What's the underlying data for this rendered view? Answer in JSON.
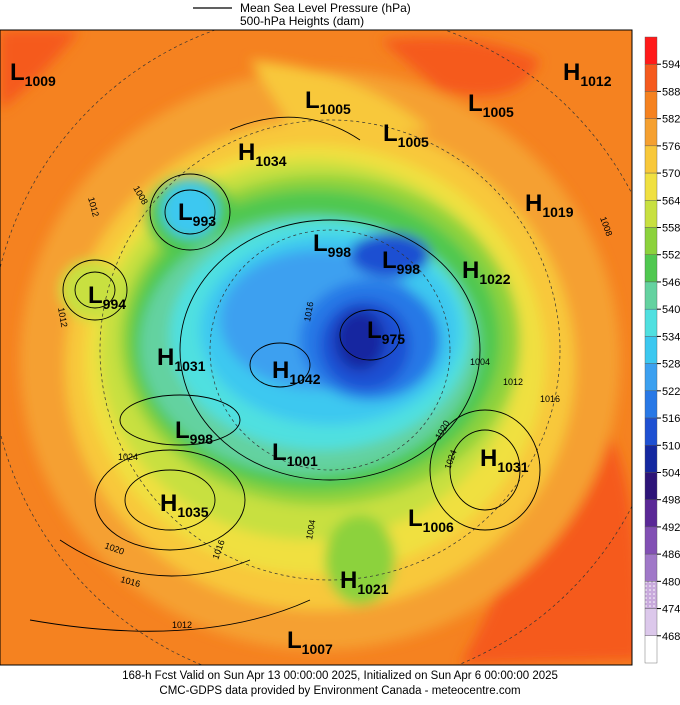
{
  "legend": {
    "line_1": "Mean Sea Level Pressure (hPa)",
    "line_2": "500-hPa Heights (dam)"
  },
  "colorbar": {
    "levels": [
      594,
      588,
      582,
      576,
      570,
      564,
      558,
      552,
      546,
      540,
      534,
      528,
      522,
      516,
      510,
      504,
      498,
      492,
      486,
      480,
      474,
      468
    ],
    "colors": [
      "#ff1a1a",
      "#f55a1e",
      "#f58220",
      "#f5a030",
      "#f8c83a",
      "#f0e040",
      "#c8e040",
      "#8cd23c",
      "#50c850",
      "#64d2a0",
      "#50e0e0",
      "#3cc8f0",
      "#3ca0f0",
      "#2878e6",
      "#1e50d2",
      "#1428a0",
      "#2d1478",
      "#5a2896",
      "#8250b4",
      "#a078c8",
      "#c8aadc",
      "#dcc8eb",
      "#ffffff"
    ]
  },
  "pressure_centers": [
    {
      "kind": "L",
      "value": 1009
    },
    {
      "kind": "L",
      "value": 1005
    },
    {
      "kind": "H",
      "value": 1012
    },
    {
      "kind": "L",
      "value": 1005
    },
    {
      "kind": "L",
      "value": 1005
    },
    {
      "kind": "H",
      "value": 1034
    },
    {
      "kind": "L",
      "value": 993
    },
    {
      "kind": "H",
      "value": 1019
    },
    {
      "kind": "L",
      "value": 998
    },
    {
      "kind": "L",
      "value": 998
    },
    {
      "kind": "H",
      "value": 1022
    },
    {
      "kind": "L",
      "value": 994
    },
    {
      "kind": "L",
      "value": 975
    },
    {
      "kind": "H",
      "value": 1031
    },
    {
      "kind": "H",
      "value": 1042
    },
    {
      "kind": "L",
      "value": 998
    },
    {
      "kind": "L",
      "value": 1001
    },
    {
      "kind": "H",
      "value": 1031
    },
    {
      "kind": "H",
      "value": 1035
    },
    {
      "kind": "L",
      "value": 1006
    },
    {
      "kind": "H",
      "value": 1021
    },
    {
      "kind": "L",
      "value": 1007
    }
  ],
  "isobar_labels": [
    1012,
    1008,
    1012,
    1016,
    1004,
    1012,
    1016,
    1020,
    1024,
    1024,
    1008,
    1020,
    1016,
    1012,
    1016,
    1004
  ],
  "footer": {
    "line_1": "168-h Fcst Valid on Sun Apr 13 00:00:00 2025, Initialized on Sun Apr  6 00:00:00 2025",
    "line_2": "CMC-GDPS data provided by Environment Canada - meteocentre.com"
  }
}
